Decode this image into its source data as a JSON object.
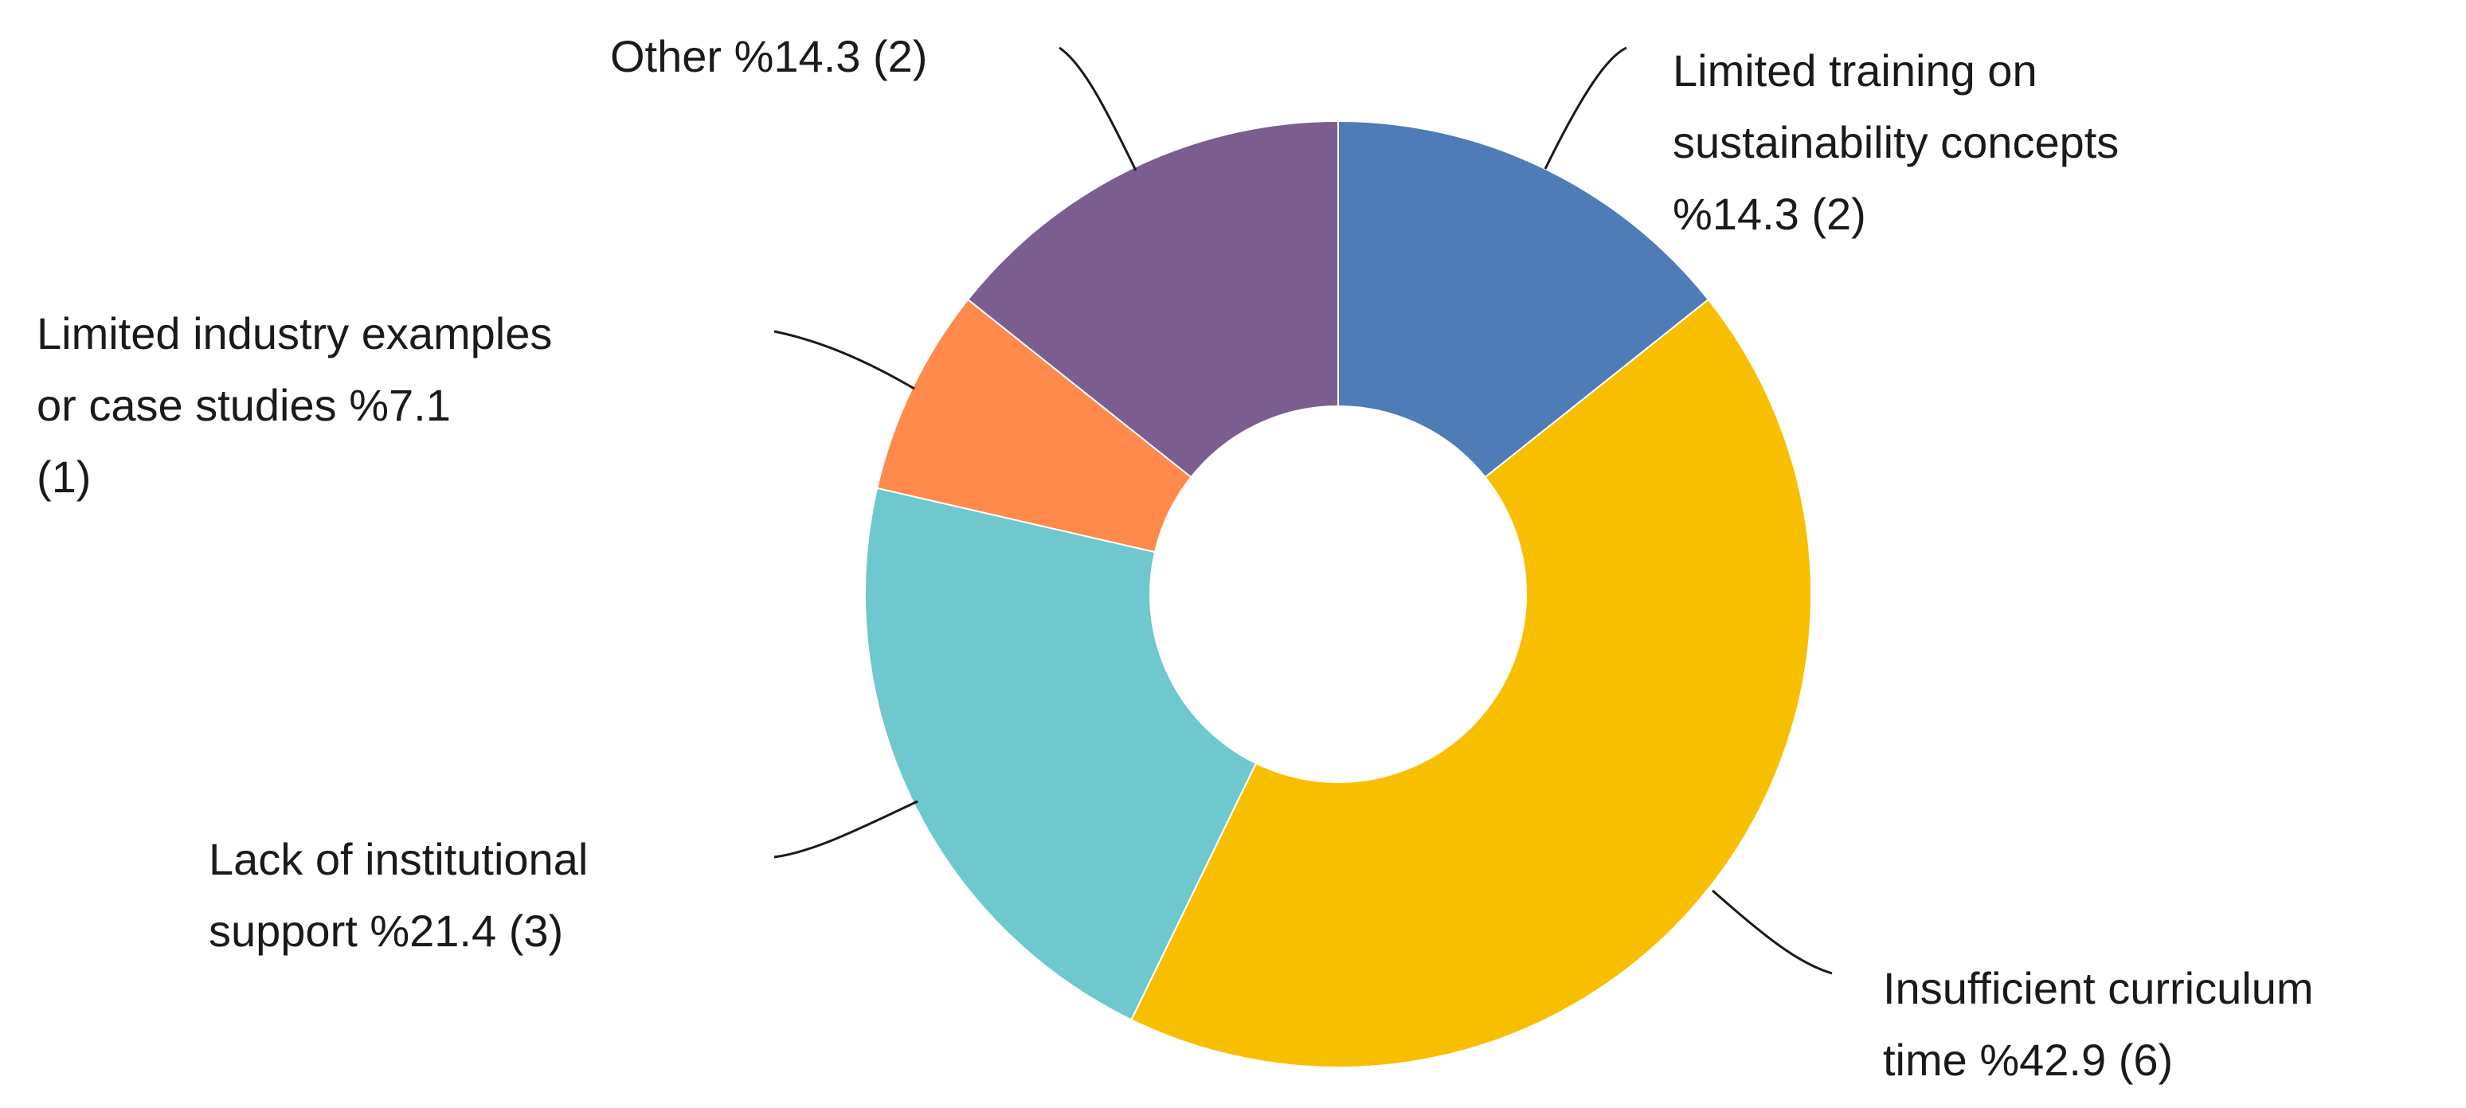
{
  "chart_data": {
    "type": "pie",
    "variant": "donut",
    "title": "",
    "start_angle_deg": 0,
    "direction": "clockwise",
    "legend": "none",
    "slices": [
      {
        "label_lines": [
          "Limited training on",
          "sustainability concepts",
          "%14.3 (2)"
        ],
        "percent": 14.3,
        "count": 2,
        "color": "#4f7cb6"
      },
      {
        "label_lines": [
          "Insufficient curriculum",
          "time %42.9 (6)"
        ],
        "percent": 42.9,
        "count": 6,
        "color": "#f8bf00"
      },
      {
        "label_lines": [
          "Lack of institutional",
          "support %21.4 (3)"
        ],
        "percent": 21.4,
        "count": 3,
        "color": "#6fc8cd"
      },
      {
        "label_lines": [
          "Limited industry examples",
          "or case studies %7.1",
          "(1)"
        ],
        "percent": 7.1,
        "count": 1,
        "color": "#ff8a4c"
      },
      {
        "label_lines": [
          "Other %14.3 (2)"
        ],
        "percent": 14.3,
        "count": 2,
        "color": "#7b5e8f"
      }
    ]
  }
}
